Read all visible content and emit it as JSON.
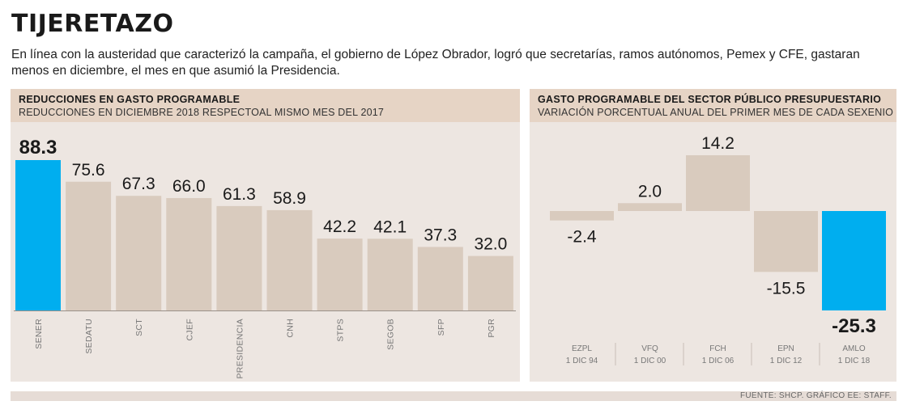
{
  "header": {
    "title": "TIJERETAZO",
    "intro": "En línea con la austeridad que caracterizó la campaña, el gobierno de López Obrador, logró que secretarías, ramos autónomos, Pemex y CFE, gastaran menos en diciembre, el mes en que asumió la Presidencia."
  },
  "left_panel": {
    "heading": "REDUCCIONES EN GASTO PROGRAMABLE",
    "subheading": "REDUCCIONES EN DICIEMBRE 2018 RESPECTOAL MISMO MES DEL 2017"
  },
  "right_panel": {
    "heading": "GASTO PROGRAMABLE DEL SECTOR PÚBLICO PRESUPUESTARIO",
    "subheading": "VARIACIÓN PORCENTUAL ANUAL DEL PRIMER MES DE CADA SEXENIO"
  },
  "footer": {
    "source": "FUENTE: SHCP. GRÁFICO EE: STAFF."
  },
  "colors": {
    "highlight": "#00aeef",
    "bar": "#d9cbbe",
    "panel": "#ede6e1",
    "header": "#e6d4c5"
  },
  "chart_data": [
    {
      "type": "bar",
      "title": "REDUCCIONES EN GASTO PROGRAMABLE",
      "subtitle": "REDUCCIONES EN DICIEMBRE 2018 RESPECTOAL MISMO MES DEL 2017",
      "categories": [
        "SENER",
        "SEDATU",
        "SCT",
        "CJEF",
        "PRESIDENCIA",
        "CNH",
        "STPS",
        "SEGOB",
        "SFP",
        "PGR"
      ],
      "values": [
        88.3,
        75.6,
        67.3,
        66.0,
        61.3,
        58.9,
        42.2,
        42.1,
        37.3,
        32.0
      ],
      "value_labels": [
        "88.3",
        "75.6",
        "67.3",
        "66.0",
        "61.3",
        "58.9",
        "42.2",
        "42.1",
        "37.3",
        "32.0"
      ],
      "highlight_index": 0,
      "ylim": [
        0,
        88.3
      ],
      "grid": false
    },
    {
      "type": "bar",
      "title": "GASTO PROGRAMABLE DEL SECTOR PÚBLICO PRESUPUESTARIO",
      "subtitle": "VARIACIÓN PORCENTUAL ANUAL DEL PRIMER MES DE CADA SEXENIO",
      "categories": [
        "EZPL",
        "VFQ",
        "FCH",
        "EPN",
        "AMLO"
      ],
      "dates": [
        "1 DIC 94",
        "1 DIC 00",
        "1 DIC 06",
        "1 DIC 12",
        "1 DIC 18"
      ],
      "values": [
        -2.4,
        2.0,
        14.2,
        -15.5,
        -25.3
      ],
      "value_labels": [
        "-2.4",
        "2.0",
        "14.2",
        "-15.5",
        "-25.3"
      ],
      "highlight_index": 4,
      "ylim": [
        -25.3,
        14.2
      ],
      "grid": false
    }
  ]
}
